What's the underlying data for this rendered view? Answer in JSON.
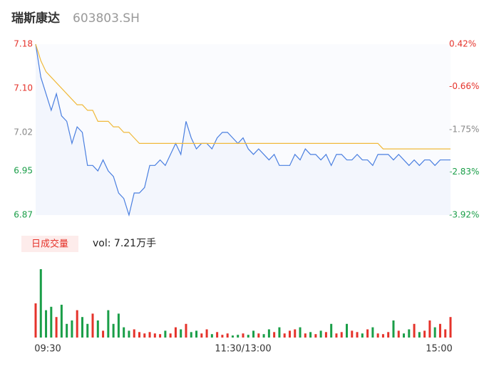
{
  "header": {
    "name": "瑞斯康达",
    "code": "603803.SH"
  },
  "chart_data": {
    "type": "line",
    "x": [
      0,
      1,
      2,
      3,
      4,
      5,
      6,
      7,
      8,
      9,
      10,
      11,
      12,
      13,
      14,
      15,
      16,
      17,
      18,
      19,
      20,
      21,
      22,
      23,
      24,
      25,
      26,
      27,
      28,
      29,
      30,
      31,
      32,
      33,
      34,
      35,
      36,
      37,
      38,
      39,
      40,
      41,
      42,
      43,
      44,
      45,
      46,
      47,
      48,
      49,
      50,
      51,
      52,
      53,
      54,
      55,
      56,
      57,
      58,
      59,
      60,
      61,
      62,
      63,
      64,
      65,
      66,
      67,
      68,
      69,
      70,
      71,
      72,
      73,
      74,
      75,
      76,
      77,
      78,
      79,
      80
    ],
    "xlim": [
      0,
      80
    ],
    "xticks": [
      {
        "value": 0,
        "label": "09:30"
      },
      {
        "value": 40,
        "label": "11:30/13:00"
      },
      {
        "value": 80,
        "label": "15:00"
      }
    ],
    "ylim": [
      6.87,
      7.18
    ],
    "yticks": [
      {
        "value": 7.18,
        "label": "7.18",
        "color": "#e5332b"
      },
      {
        "value": 7.1,
        "label": "7.10",
        "color": "#e5332b"
      },
      {
        "value": 7.02,
        "label": "7.02",
        "color": "#888888"
      },
      {
        "value": 6.95,
        "label": "6.95",
        "color": "#1a9e48"
      },
      {
        "value": 6.87,
        "label": "6.87",
        "color": "#1a9e48"
      }
    ],
    "y2lim": [
      -3.92,
      0.42
    ],
    "y2ticks": [
      {
        "value": 0.42,
        "label": "0.42%",
        "color": "#e5332b"
      },
      {
        "value": -0.66,
        "label": "-0.66%",
        "color": "#e5332b"
      },
      {
        "value": -1.75,
        "label": "-1.75%",
        "color": "#888888"
      },
      {
        "value": -2.83,
        "label": "-2.83%",
        "color": "#1a9e48"
      },
      {
        "value": -3.92,
        "label": "-3.92%",
        "color": "#1a9e48"
      }
    ],
    "series": [
      {
        "name": "price",
        "color": "#4a7fe0",
        "values": [
          7.18,
          7.12,
          7.09,
          7.06,
          7.09,
          7.05,
          7.04,
          7.0,
          7.03,
          7.02,
          6.96,
          6.96,
          6.95,
          6.97,
          6.95,
          6.94,
          6.91,
          6.9,
          6.87,
          6.91,
          6.91,
          6.92,
          6.96,
          6.96,
          6.97,
          6.96,
          6.98,
          7.0,
          6.98,
          7.04,
          7.01,
          6.99,
          7.0,
          7.0,
          6.99,
          7.01,
          7.02,
          7.02,
          7.01,
          7.0,
          7.01,
          6.99,
          6.98,
          6.99,
          6.98,
          6.97,
          6.98,
          6.96,
          6.96,
          6.96,
          6.98,
          6.97,
          6.99,
          6.98,
          6.98,
          6.97,
          6.98,
          6.96,
          6.98,
          6.98,
          6.97,
          6.97,
          6.98,
          6.97,
          6.97,
          6.96,
          6.98,
          6.98,
          6.98,
          6.97,
          6.98,
          6.97,
          6.96,
          6.97,
          6.96,
          6.97,
          6.97,
          6.96,
          6.97,
          6.97,
          6.97
        ]
      },
      {
        "name": "average",
        "color": "#f0b93a",
        "values": [
          7.18,
          7.15,
          7.13,
          7.12,
          7.11,
          7.1,
          7.09,
          7.08,
          7.07,
          7.07,
          7.06,
          7.06,
          7.04,
          7.04,
          7.04,
          7.03,
          7.03,
          7.02,
          7.02,
          7.01,
          7.0,
          7.0,
          7.0,
          7.0,
          7.0,
          7.0,
          7.0,
          7.0,
          7.0,
          7.0,
          7.0,
          7.0,
          7.0,
          7.0,
          7.0,
          7.0,
          7.0,
          7.0,
          7.0,
          7.0,
          7.0,
          7.0,
          7.0,
          7.0,
          7.0,
          7.0,
          7.0,
          7.0,
          7.0,
          7.0,
          7.0,
          7.0,
          7.0,
          7.0,
          7.0,
          7.0,
          7.0,
          7.0,
          7.0,
          7.0,
          7.0,
          7.0,
          7.0,
          7.0,
          7.0,
          7.0,
          7.0,
          6.99,
          6.99,
          6.99,
          6.99,
          6.99,
          6.99,
          6.99,
          6.99,
          6.99,
          6.99,
          6.99,
          6.99,
          6.99,
          6.99
        ]
      }
    ],
    "volume_label": "日成交量",
    "volume_text": "vol: 7.21万手",
    "up_color": "#e5332b",
    "down_color": "#1a9e48",
    "volume": [
      50,
      100,
      40,
      45,
      30,
      48,
      20,
      25,
      40,
      30,
      20,
      35,
      25,
      10,
      40,
      20,
      35,
      15,
      10,
      12,
      8,
      6,
      8,
      6,
      5,
      10,
      6,
      15,
      12,
      20,
      8,
      10,
      6,
      12,
      5,
      8,
      4,
      6,
      3,
      4,
      6,
      4,
      10,
      6,
      5,
      12,
      8,
      15,
      6,
      10,
      12,
      15,
      6,
      8,
      5,
      10,
      8,
      20,
      6,
      8,
      20,
      10,
      8,
      6,
      12,
      15,
      6,
      5,
      8,
      25,
      10,
      6,
      12,
      20,
      8,
      10,
      25,
      15,
      20,
      12,
      30
    ]
  }
}
